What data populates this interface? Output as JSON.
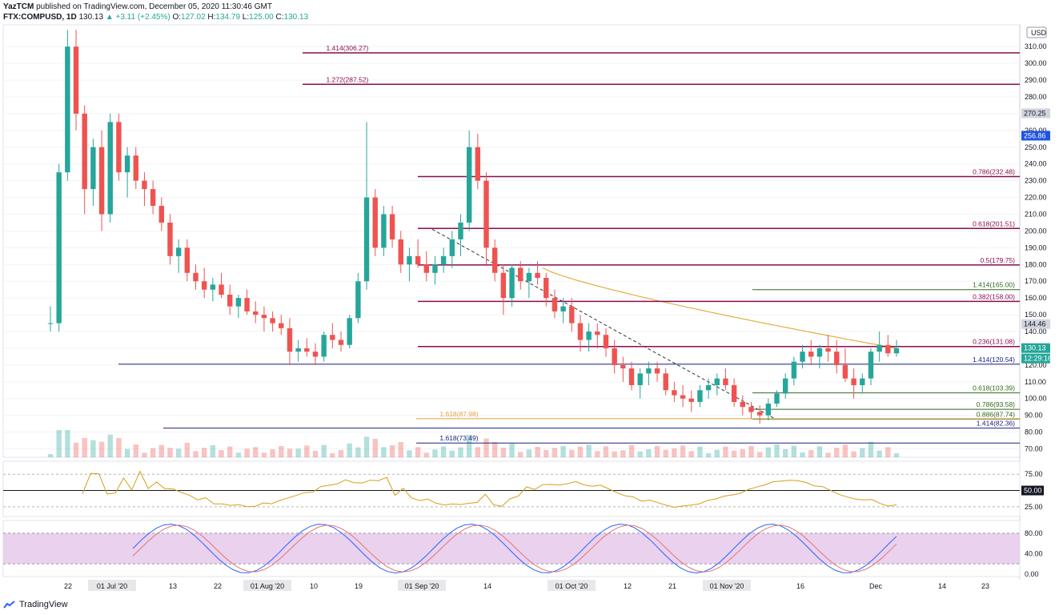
{
  "header": {
    "publisher": "YazTCM",
    "published_text": "published on TradingView.com, December 05, 2020 11:30:46 GMT",
    "symbol": "FTX:COMPUSD, 1D",
    "last": "130.13",
    "change": "▲ +3.11 (+2.45%)",
    "open_label": "O:",
    "open": "127.02",
    "high_label": "H:",
    "high": "134.79",
    "low_label": "L:",
    "low": "125.00",
    "close_label": "C:",
    "close": "130.13"
  },
  "footer": {
    "brand": "TradingView"
  },
  "colors": {
    "up": "#26a69a",
    "down": "#ef5350",
    "fib_red": "#880e4f",
    "fib_blue": "#1a237e",
    "fib_green": "#33691e",
    "ma": "#e0b040",
    "rsi": "#d4a017",
    "stoch_k": "#2962ff",
    "stoch_d": "#e57373",
    "stoch_band": "#e1bee7"
  },
  "chart_data": {
    "type": "candlestick",
    "currency": "USD",
    "y_axis_ticks": [
      70,
      80,
      90,
      100,
      110,
      120,
      130,
      140,
      150,
      160,
      170,
      180,
      190,
      200,
      210,
      220,
      230,
      240,
      250,
      260,
      270,
      280,
      290,
      300,
      310
    ],
    "ylim": [
      65,
      323
    ],
    "x_axis_labels": [
      "22",
      "01 Jul '20",
      "13",
      "22",
      "01 Aug '20",
      "10",
      "19",
      "01 Sep '20",
      "14",
      "01 Oct '20",
      "12",
      "21",
      "01 Nov '20",
      "16",
      "Dec",
      "14",
      "23"
    ],
    "price_badges": [
      {
        "label": "270.25",
        "style": "gray"
      },
      {
        "label": "256.86",
        "style": "blue"
      },
      {
        "label": "144.46",
        "style": "gray"
      },
      {
        "label": "130.13",
        "style": "teal"
      },
      {
        "label": "12:29:16",
        "style": "teal"
      }
    ],
    "levels": [
      {
        "label": "1.414(306.27)",
        "price": 306.27,
        "color": "red",
        "side": "left"
      },
      {
        "label": "1.272(287.52)",
        "price": 287.52,
        "color": "red",
        "side": "left"
      },
      {
        "label": "0.786(232.48)",
        "price": 232.48,
        "color": "red",
        "side": "right"
      },
      {
        "label": "0.618(201.51)",
        "price": 201.51,
        "color": "red",
        "side": "right"
      },
      {
        "label": "0.5(179.75)",
        "price": 179.75,
        "color": "red",
        "side": "right"
      },
      {
        "label": "1.414(165.00)",
        "price": 165.0,
        "color": "green",
        "side": "right"
      },
      {
        "label": "0.382(158.00)",
        "price": 158.0,
        "color": "red",
        "side": "right"
      },
      {
        "label": "0.236(131.08)",
        "price": 131.08,
        "color": "red",
        "side": "right"
      },
      {
        "label": "1.414(120.54)",
        "price": 120.54,
        "color": "blue",
        "side": "right"
      },
      {
        "label": "0.618(103.39)",
        "price": 103.39,
        "color": "green",
        "side": "right"
      },
      {
        "label": "0.786(93.58)",
        "price": 93.58,
        "color": "green",
        "side": "right"
      },
      {
        "label": "0.886(87.74)",
        "price": 87.74,
        "color": "green",
        "side": "right"
      },
      {
        "label": "1.618(87.98)",
        "price": 87.98,
        "color": "orange",
        "side": "left"
      },
      {
        "label": "1.414(82.36)",
        "price": 82.36,
        "color": "blue",
        "side": "right"
      },
      {
        "label": "1.618(73.49)",
        "price": 73.49,
        "color": "blue",
        "side": "left"
      }
    ],
    "ohlc_approx": [
      [
        145,
        155,
        140,
        145
      ],
      [
        145,
        240,
        140,
        235
      ],
      [
        235,
        320,
        230,
        310
      ],
      [
        310,
        320,
        260,
        270
      ],
      [
        270,
        275,
        210,
        225
      ],
      [
        225,
        255,
        215,
        250
      ],
      [
        250,
        260,
        200,
        210
      ],
      [
        210,
        270,
        205,
        265
      ],
      [
        265,
        270,
        230,
        235
      ],
      [
        235,
        250,
        220,
        245
      ],
      [
        245,
        250,
        225,
        230
      ],
      [
        230,
        235,
        215,
        225
      ],
      [
        225,
        230,
        210,
        215
      ],
      [
        215,
        220,
        200,
        205
      ],
      [
        205,
        210,
        180,
        185
      ],
      [
        185,
        195,
        175,
        190
      ],
      [
        190,
        195,
        170,
        175
      ],
      [
        175,
        180,
        165,
        170
      ],
      [
        170,
        178,
        160,
        165
      ],
      [
        165,
        172,
        158,
        168
      ],
      [
        168,
        175,
        160,
        162
      ],
      [
        162,
        168,
        150,
        155
      ],
      [
        155,
        162,
        148,
        160
      ],
      [
        160,
        165,
        150,
        152
      ],
      [
        152,
        158,
        145,
        150
      ],
      [
        150,
        155,
        140,
        148
      ],
      [
        148,
        152,
        140,
        145
      ],
      [
        145,
        150,
        138,
        142
      ],
      [
        142,
        148,
        120,
        128
      ],
      [
        128,
        135,
        122,
        130
      ],
      [
        130,
        136,
        125,
        128
      ],
      [
        128,
        133,
        120,
        125
      ],
      [
        125,
        140,
        122,
        138
      ],
      [
        138,
        145,
        130,
        135
      ],
      [
        135,
        140,
        128,
        132
      ],
      [
        132,
        150,
        130,
        148
      ],
      [
        148,
        175,
        145,
        170
      ],
      [
        170,
        265,
        165,
        220
      ],
      [
        220,
        225,
        185,
        190
      ],
      [
        190,
        215,
        185,
        210
      ],
      [
        210,
        215,
        190,
        195
      ],
      [
        195,
        200,
        175,
        180
      ],
      [
        180,
        190,
        170,
        185
      ],
      [
        185,
        195,
        178,
        180
      ],
      [
        180,
        188,
        170,
        175
      ],
      [
        175,
        185,
        168,
        180
      ],
      [
        180,
        190,
        175,
        185
      ],
      [
        185,
        200,
        178,
        195
      ],
      [
        195,
        210,
        185,
        205
      ],
      [
        205,
        260,
        200,
        250
      ],
      [
        250,
        258,
        225,
        230
      ],
      [
        230,
        235,
        180,
        190
      ],
      [
        190,
        195,
        170,
        175
      ],
      [
        175,
        180,
        150,
        160
      ],
      [
        160,
        180,
        155,
        178
      ],
      [
        178,
        182,
        165,
        170
      ],
      [
        170,
        178,
        160,
        175
      ],
      [
        175,
        182,
        168,
        172
      ],
      [
        172,
        175,
        155,
        160
      ],
      [
        160,
        165,
        148,
        152
      ],
      [
        152,
        160,
        145,
        155
      ],
      [
        155,
        160,
        140,
        145
      ],
      [
        145,
        150,
        128,
        135
      ],
      [
        135,
        145,
        128,
        140
      ],
      [
        140,
        145,
        130,
        138
      ],
      [
        138,
        142,
        125,
        130
      ],
      [
        130,
        135,
        115,
        120
      ],
      [
        120,
        125,
        110,
        118
      ],
      [
        118,
        122,
        105,
        108
      ],
      [
        108,
        118,
        100,
        115
      ],
      [
        115,
        122,
        108,
        118
      ],
      [
        118,
        122,
        110,
        115
      ],
      [
        115,
        118,
        102,
        105
      ],
      [
        105,
        110,
        98,
        102
      ],
      [
        102,
        108,
        95,
        100
      ],
      [
        100,
        105,
        92,
        98
      ],
      [
        98,
        108,
        95,
        105
      ],
      [
        105,
        112,
        100,
        108
      ],
      [
        108,
        115,
        102,
        112
      ],
      [
        112,
        118,
        105,
        108
      ],
      [
        108,
        112,
        95,
        98
      ],
      [
        98,
        102,
        90,
        95
      ],
      [
        95,
        98,
        88,
        92
      ],
      [
        92,
        96,
        85,
        90
      ],
      [
        90,
        100,
        87,
        97
      ],
      [
        97,
        105,
        95,
        103
      ],
      [
        103,
        115,
        100,
        112
      ],
      [
        112,
        125,
        108,
        122
      ],
      [
        122,
        132,
        118,
        128
      ],
      [
        128,
        135,
        120,
        125
      ],
      [
        125,
        132,
        118,
        130
      ],
      [
        130,
        138,
        122,
        128
      ],
      [
        128,
        135,
        115,
        120
      ],
      [
        120,
        130,
        110,
        112
      ],
      [
        112,
        118,
        100,
        108
      ],
      [
        108,
        115,
        103,
        112
      ],
      [
        112,
        130,
        108,
        128
      ],
      [
        128,
        140,
        122,
        132
      ],
      [
        132,
        138,
        125,
        127
      ],
      [
        127,
        135,
        125,
        130
      ]
    ],
    "indicators": {
      "rsi_ticks": [
        25.0,
        50.0,
        75.0
      ],
      "stoch_ticks": [
        0.0,
        40.0,
        80.0
      ]
    }
  }
}
